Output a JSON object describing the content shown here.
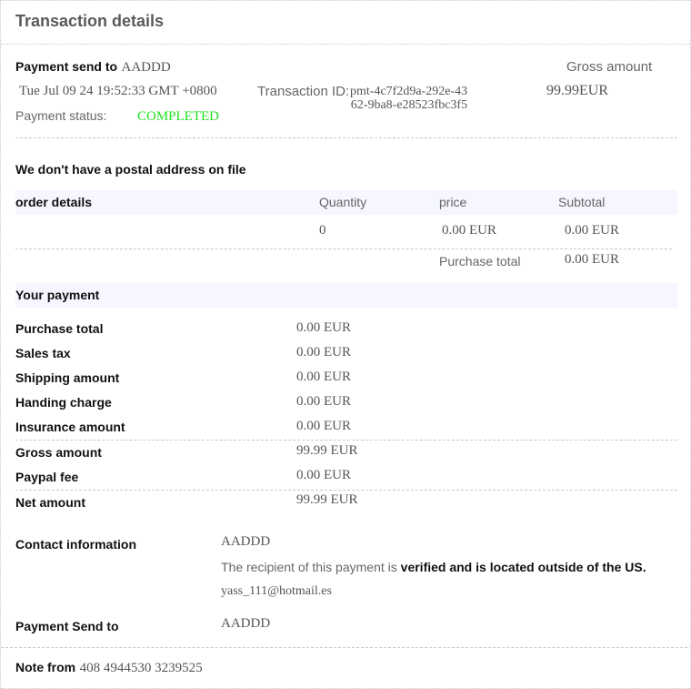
{
  "header": {
    "title": "Transaction details"
  },
  "summary": {
    "payment_send_to_label": "Payment send to",
    "payment_send_to_value": "AADDD",
    "date": "Tue Jul 09 24 19:52:33 GMT +0800",
    "transaction_id_label": "Transaction ID:",
    "transaction_id_line1": "pmt-4c7f2d9a-292e-43",
    "transaction_id_line2": "62-9ba8-e28523fbc3f5",
    "gross_amount_label": "Gross amount",
    "gross_amount_value": "99.99EUR",
    "payment_status_label": "Payment status:",
    "payment_status_value": "COMPLETED",
    "status_color": "#22e022"
  },
  "postal": "We don't have a postal address on file",
  "order": {
    "headers": [
      "order details",
      "Quantity",
      "price",
      "Subtotal"
    ],
    "row": {
      "quantity": "0",
      "price": "0.00 EUR",
      "subtotal": "0.00 EUR"
    },
    "purchase_total_label": "Purchase total",
    "purchase_total_value": "0.00 EUR"
  },
  "payment": {
    "title": "Your payment",
    "rows": [
      {
        "label": "Purchase total",
        "value": "0.00 EUR"
      },
      {
        "label": "Sales tax",
        "value": "0.00 EUR"
      },
      {
        "label": "Shipping amount",
        "value": "0.00 EUR"
      },
      {
        "label": "Handing charge",
        "value": "0.00 EUR"
      },
      {
        "label": "Insurance amount",
        "value": "0.00 EUR"
      },
      {
        "label": "Gross amount",
        "value": "99.99 EUR"
      },
      {
        "label": "Paypal fee",
        "value": "0.00 EUR"
      },
      {
        "label": "Net amount",
        "value": "99.99 EUR"
      }
    ]
  },
  "contact": {
    "label": "Contact information",
    "name": "AADDD",
    "recipient_prefix": "The recipient of this payment is ",
    "recipient_bold": "verified and is located outside of the US.",
    "email": "yass_111@hotmail.es",
    "send_to_label": "Payment Send to",
    "send_to_value": "AADDD"
  },
  "note": {
    "label": "Note from",
    "value": "408 4944530 3239525"
  }
}
